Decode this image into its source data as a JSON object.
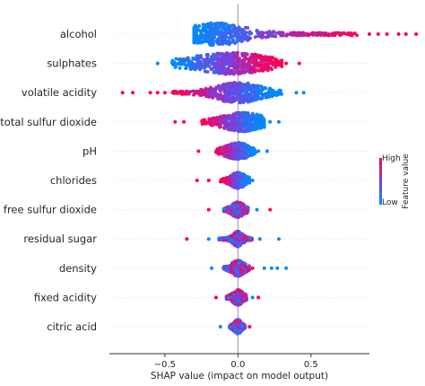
{
  "chart_data": {
    "type": "scatter",
    "subtype": "shap-beeswarm-summary",
    "title": "",
    "xlabel": "SHAP value (impact on model output)",
    "ylabel": "",
    "xlim": [
      -0.88,
      0.9
    ],
    "x_ticks": [
      {
        "value": -0.5,
        "label": "−0.5"
      },
      {
        "value": 0.0,
        "label": "0.0"
      },
      {
        "value": 0.5,
        "label": "0.5"
      }
    ],
    "zero_line": 0.0,
    "grid": false,
    "colorbar": {
      "title": "Feature value",
      "high_label": "High",
      "low_label": "Low",
      "high_color": "#ff0052",
      "low_color": "#008bfb"
    },
    "features": [
      {
        "name": "alcohol",
        "min": -0.3,
        "max": 0.82,
        "peak": -0.15,
        "spread": 0.12,
        "density": 1.0,
        "color_trend": 1,
        "outliers": [
          [
            0.9,
            1
          ],
          [
            0.96,
            1
          ],
          [
            1.02,
            1
          ],
          [
            1.1,
            1
          ],
          [
            1.15,
            1
          ],
          [
            1.22,
            1
          ],
          [
            1.35,
            1
          ]
        ]
      },
      {
        "name": "sulphates",
        "min": -0.45,
        "max": 0.3,
        "peak": -0.05,
        "spread": 0.16,
        "density": 0.95,
        "color_trend": 1,
        "outliers": [
          [
            -0.55,
            0
          ],
          [
            0.33,
            1
          ],
          [
            0.42,
            1
          ]
        ]
      },
      {
        "name": "volatile acidity",
        "min": -0.45,
        "max": 0.3,
        "peak": 0.0,
        "spread": 0.09,
        "density": 0.9,
        "color_trend": -1,
        "outliers": [
          [
            -0.72,
            1
          ],
          [
            -0.79,
            1
          ],
          [
            -0.6,
            1
          ],
          [
            -0.55,
            1
          ],
          [
            -0.5,
            1
          ],
          [
            0.4,
            0
          ],
          [
            0.45,
            0
          ]
        ]
      },
      {
        "name": "total sulfur dioxide",
        "min": -0.25,
        "max": 0.18,
        "peak": 0.03,
        "spread": 0.08,
        "density": 0.75,
        "color_trend": -1,
        "outliers": [
          [
            -0.37,
            1
          ],
          [
            -0.43,
            1
          ],
          [
            0.22,
            0
          ],
          [
            0.28,
            0
          ]
        ]
      },
      {
        "name": "pH",
        "min": -0.15,
        "max": 0.12,
        "peak": 0.0,
        "spread": 0.05,
        "density": 0.55,
        "color_trend": -1,
        "outliers": [
          [
            -0.27,
            1
          ],
          [
            0.14,
            0
          ],
          [
            0.2,
            0
          ]
        ]
      },
      {
        "name": "chlorides",
        "min": -0.12,
        "max": 0.08,
        "peak": 0.0,
        "spread": 0.03,
        "density": 0.5,
        "color_trend": -1,
        "outliers": [
          [
            -0.2,
            1
          ],
          [
            -0.28,
            1
          ],
          [
            0.1,
            0
          ]
        ]
      },
      {
        "name": "free sulfur dioxide",
        "min": -0.1,
        "max": 0.07,
        "peak": 0.0,
        "spread": 0.025,
        "density": 0.45,
        "color_trend": 0,
        "outliers": [
          [
            -0.2,
            1
          ],
          [
            0.13,
            0
          ],
          [
            0.22,
            1
          ]
        ]
      },
      {
        "name": "residual sugar",
        "min": -0.13,
        "max": 0.1,
        "peak": 0.0,
        "spread": 0.02,
        "density": 0.45,
        "color_trend": 0,
        "outliers": [
          [
            -0.35,
            1
          ],
          [
            -0.2,
            0
          ],
          [
            0.15,
            0
          ],
          [
            0.28,
            0
          ]
        ]
      },
      {
        "name": "density",
        "min": -0.1,
        "max": 0.08,
        "peak": 0.0,
        "spread": 0.025,
        "density": 0.5,
        "color_trend": 0,
        "outliers": [
          [
            -0.18,
            0
          ],
          [
            0.1,
            1
          ],
          [
            0.18,
            0
          ],
          [
            0.23,
            0
          ],
          [
            0.27,
            0
          ],
          [
            0.33,
            0
          ]
        ]
      },
      {
        "name": "fixed acidity",
        "min": -0.08,
        "max": 0.06,
        "peak": 0.0,
        "spread": 0.02,
        "density": 0.45,
        "color_trend": 0,
        "outliers": [
          [
            -0.15,
            1
          ],
          [
            0.1,
            0
          ],
          [
            0.14,
            1
          ]
        ]
      },
      {
        "name": "citric acid",
        "min": -0.06,
        "max": 0.05,
        "peak": 0.0,
        "spread": 0.015,
        "density": 0.35,
        "color_trend": 0,
        "outliers": [
          [
            -0.12,
            0
          ],
          [
            0.08,
            1
          ]
        ]
      }
    ]
  }
}
